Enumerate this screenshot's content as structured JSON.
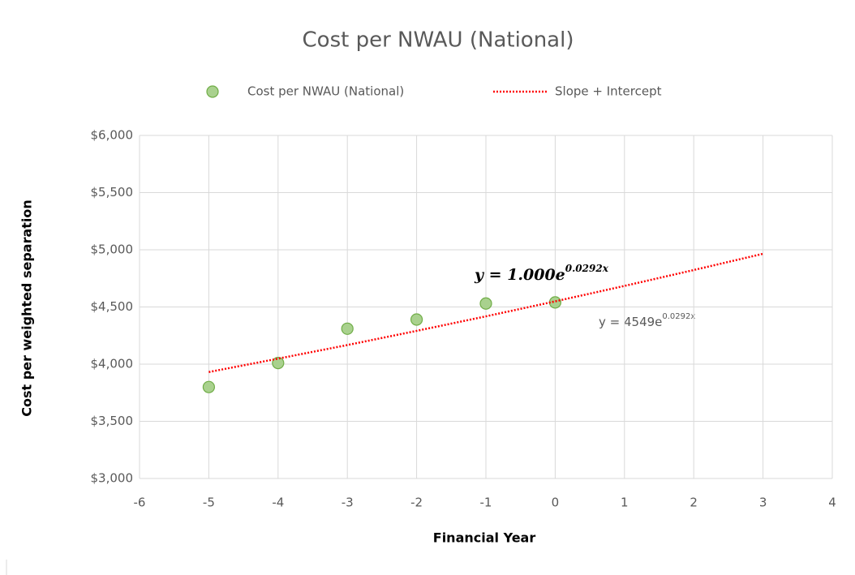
{
  "chart_data": {
    "type": "scatter",
    "title": "Cost per NWAU (National)",
    "x_label": "Financial Year",
    "y_label": "Cost per weighted separation",
    "series": [
      {
        "name": "Cost per NWAU (National)",
        "color": "#a9d18e",
        "marker": "circle",
        "x": [
          -5,
          -4,
          -3,
          -2,
          -1,
          0
        ],
        "values": [
          3800,
          4010,
          4310,
          4390,
          4530,
          4540
        ]
      },
      {
        "name": "Slope + Intercept",
        "color": "#ff0000",
        "line_style": "dotted",
        "x": [
          -5,
          -4,
          -3,
          -2,
          -1,
          0,
          1,
          2,
          3
        ],
        "values": [
          3931,
          4048,
          4167,
          4291,
          4418,
          4549,
          4684,
          4823,
          4965
        ]
      }
    ],
    "annotations": [
      {
        "base": "y = 1.000e",
        "exponent": "0.0292x"
      },
      {
        "base": "y = 4549e",
        "exponent": "0.0292x"
      }
    ],
    "xlim": [
      -6,
      4
    ],
    "xticks": [
      -6,
      -5,
      -4,
      -3,
      -2,
      -1,
      0,
      1,
      2,
      3,
      4
    ],
    "ylim": [
      3000,
      6000
    ],
    "yticks": [
      {
        "value": 3000,
        "label": "$3,000"
      },
      {
        "value": 3500,
        "label": "$3,500"
      },
      {
        "value": 4000,
        "label": "$4,000"
      },
      {
        "value": 4500,
        "label": "$4,500"
      },
      {
        "value": 5000,
        "label": "$5,000"
      },
      {
        "value": 5500,
        "label": "$5,500"
      },
      {
        "value": 6000,
        "label": "$6,000"
      }
    ],
    "grid": true,
    "legend": "top"
  }
}
